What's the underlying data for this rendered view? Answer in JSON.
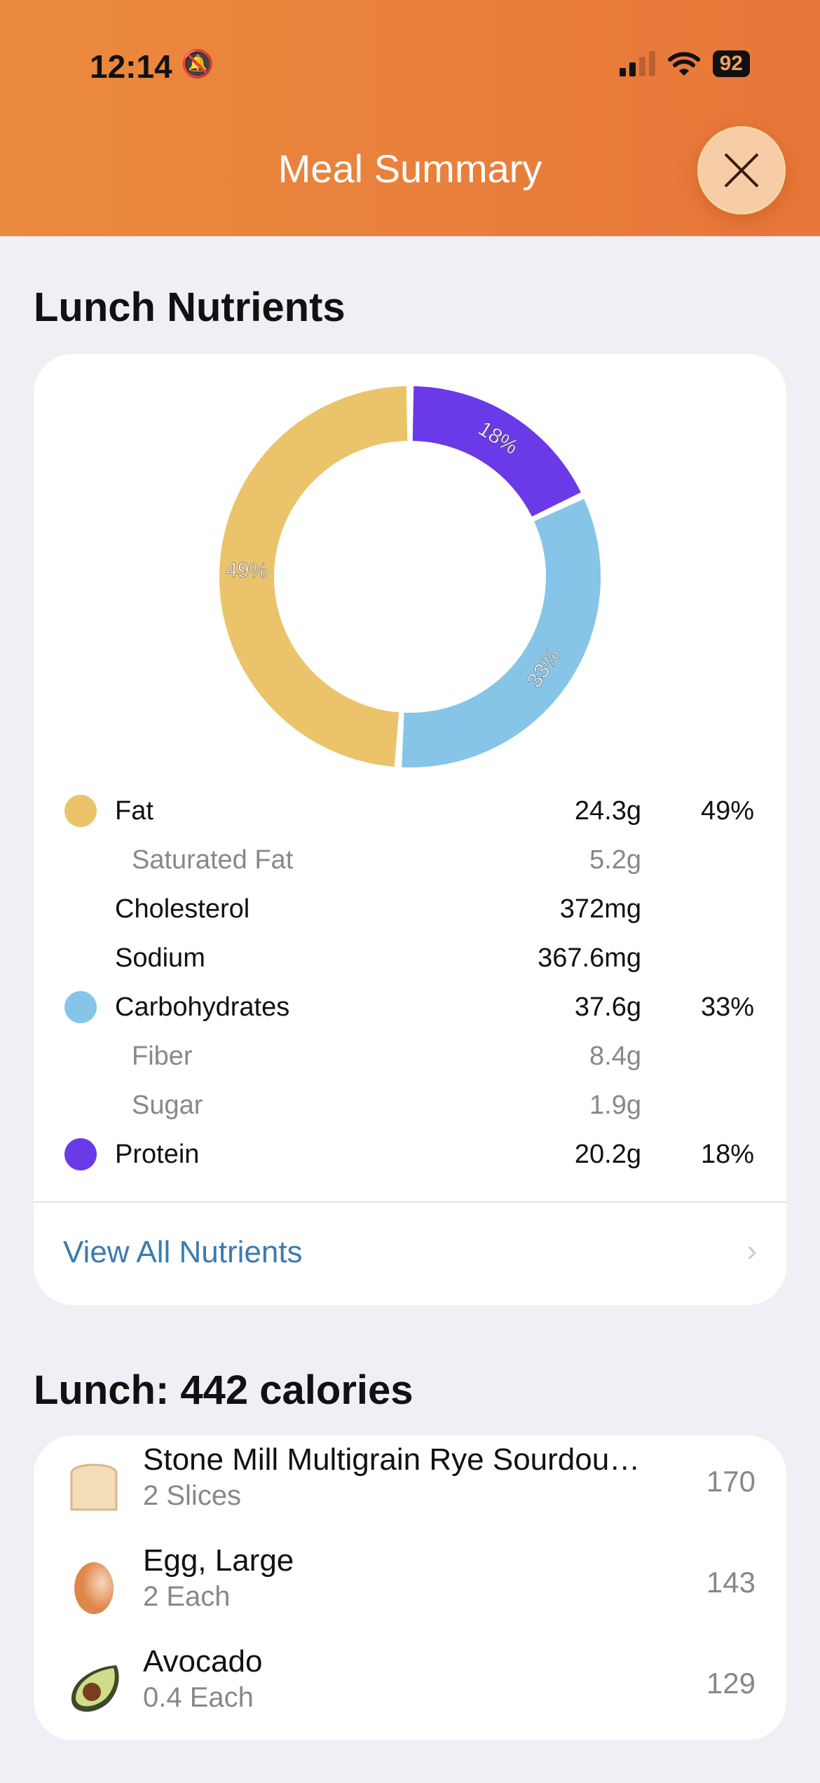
{
  "status_bar": {
    "time": "12:14",
    "battery": "92",
    "icons": [
      "bell-slash-icon",
      "signal-icon",
      "wifi-icon",
      "battery-icon"
    ]
  },
  "header": {
    "title": "Meal Summary",
    "close_icon": "close-icon"
  },
  "nutrients": {
    "heading": "Lunch Nutrients",
    "rows": [
      {
        "label": "Fat",
        "value": "24.3g",
        "percent": "49%",
        "color": "#ebc36a"
      },
      {
        "label": "Saturated Fat",
        "value": "5.2g"
      },
      {
        "label": "Cholesterol",
        "value": "372mg"
      },
      {
        "label": "Sodium",
        "value": "367.6mg"
      },
      {
        "label": "Carbohydrates",
        "value": "37.6g",
        "percent": "33%",
        "color": "#86c5e7"
      },
      {
        "label": "Fiber",
        "value": "8.4g"
      },
      {
        "label": "Sugar",
        "value": "1.9g"
      },
      {
        "label": "Protein",
        "value": "20.2g",
        "percent": "18%",
        "color": "#6a3ae8"
      }
    ],
    "view_all": "View All Nutrients"
  },
  "chart_data": {
    "type": "pie",
    "donut": true,
    "categories": [
      "Protein",
      "Carbohydrates",
      "Fat"
    ],
    "values": [
      18,
      33,
      49
    ],
    "labels": [
      "18%",
      "33%",
      "49%"
    ],
    "colors": [
      "#6a3ae8",
      "#86c5e7",
      "#ebc36a"
    ]
  },
  "meal": {
    "heading": "Lunch: 442 calories",
    "items": [
      {
        "name": "Stone Mill Multigrain Rye Sourdou…",
        "qty": "2 Slices",
        "calories": "170",
        "icon": "bread-icon"
      },
      {
        "name": "Egg, Large",
        "qty": "2 Each",
        "calories": "143",
        "icon": "egg-icon"
      },
      {
        "name": "Avocado",
        "qty": "0.4 Each",
        "calories": "129",
        "icon": "avocado-icon"
      }
    ]
  }
}
